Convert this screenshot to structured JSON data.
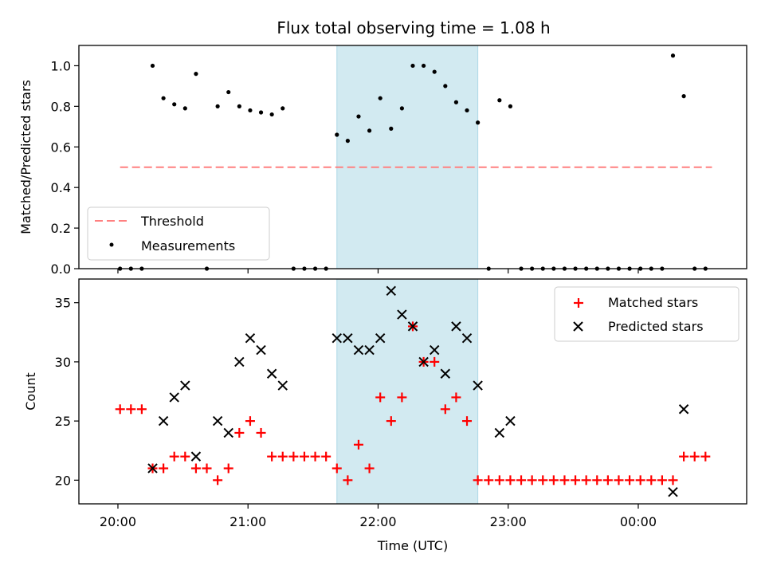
{
  "figure": {
    "title": "Flux total observing time = 1.08 h",
    "xlabel": "Time (UTC)",
    "x_ticks": [
      "20:00",
      "21:00",
      "22:00",
      "23:00",
      "00:00"
    ]
  },
  "chart_data": [
    {
      "type": "scatter",
      "ylabel": "Matched/Predicted stars",
      "ylim": [
        0,
        1.1
      ],
      "yticks": [
        "0.0",
        "0.2",
        "0.4",
        "0.6",
        "0.8",
        "1.0"
      ],
      "xlim": [
        "19:42",
        "00:50"
      ],
      "shaded_span": [
        "21:41",
        "22:46"
      ],
      "shaded_color": "#add8e6",
      "legend": {
        "position": "lower left",
        "threshold": "Threshold",
        "measurements": "Measurements"
      },
      "threshold": {
        "value": 0.5,
        "x": [
          "20:01",
          "00:34"
        ],
        "color": "#ff8080"
      },
      "series": [
        {
          "name": "Measurements",
          "color": "#000000",
          "x": [
            "20:01",
            "20:06",
            "20:11",
            "20:16",
            "20:21",
            "20:26",
            "20:31",
            "20:36",
            "20:41",
            "20:46",
            "20:51",
            "20:56",
            "21:01",
            "21:06",
            "21:11",
            "21:16",
            "21:21",
            "21:26",
            "21:31",
            "21:36",
            "21:41",
            "21:46",
            "21:51",
            "21:56",
            "22:01",
            "22:06",
            "22:11",
            "22:16",
            "22:21",
            "22:26",
            "22:31",
            "22:36",
            "22:41",
            "22:46",
            "22:51",
            "22:56",
            "23:01",
            "23:06",
            "23:11",
            "23:16",
            "23:21",
            "23:26",
            "23:31",
            "23:36",
            "23:41",
            "23:46",
            "23:51",
            "23:56",
            "00:01",
            "00:06",
            "00:11",
            "00:16",
            "00:21",
            "00:26",
            "00:31"
          ],
          "y": [
            0,
            0,
            0,
            1.0,
            0.84,
            0.81,
            0.79,
            0.96,
            0,
            0.8,
            0.87,
            0.8,
            0.78,
            0.77,
            0.76,
            0.79,
            0,
            0,
            0,
            0,
            0.66,
            0.63,
            0.75,
            0.68,
            0.84,
            0.69,
            0.79,
            1.0,
            1.0,
            0.97,
            0.9,
            0.82,
            0.78,
            0.72,
            0,
            0.83,
            0.8,
            0,
            0,
            0,
            0,
            0,
            0,
            0,
            0,
            0,
            0,
            0,
            0,
            0,
            0,
            1.05,
            0.85,
            0,
            0
          ]
        }
      ]
    },
    {
      "type": "scatter",
      "ylabel": "Count",
      "ylim": [
        18,
        37
      ],
      "yticks": [
        "20",
        "25",
        "30",
        "35"
      ],
      "xlim": [
        "19:42",
        "00:50"
      ],
      "shaded_span": [
        "21:41",
        "22:46"
      ],
      "shaded_color": "#add8e6",
      "legend": {
        "position": "upper right"
      },
      "series": [
        {
          "name": "Matched stars",
          "color": "#ff0000",
          "marker": "plus",
          "x": [
            "20:01",
            "20:06",
            "20:11",
            "20:16",
            "20:21",
            "20:26",
            "20:31",
            "20:36",
            "20:41",
            "20:46",
            "20:51",
            "20:56",
            "21:01",
            "21:06",
            "21:11",
            "21:16",
            "21:21",
            "21:26",
            "21:31",
            "21:36",
            "21:41",
            "21:46",
            "21:51",
            "21:56",
            "22:01",
            "22:06",
            "22:11",
            "22:16",
            "22:21",
            "22:26",
            "22:31",
            "22:36",
            "22:41",
            "22:46",
            "22:51",
            "22:56",
            "23:01",
            "23:06",
            "23:11",
            "23:16",
            "23:21",
            "23:26",
            "23:31",
            "23:36",
            "23:41",
            "23:46",
            "23:51",
            "23:56",
            "00:01",
            "00:06",
            "00:11",
            "00:16",
            "00:21",
            "00:26",
            "00:31"
          ],
          "y": [
            26,
            26,
            26,
            21,
            21,
            22,
            22,
            21,
            21,
            20,
            21,
            24,
            25,
            24,
            22,
            22,
            22,
            22,
            22,
            22,
            21,
            20,
            23,
            21,
            27,
            25,
            27,
            33,
            30,
            30,
            26,
            27,
            25,
            20,
            20,
            20,
            20,
            20,
            20,
            20,
            20,
            20,
            20,
            20,
            20,
            20,
            20,
            20,
            20,
            20,
            20,
            20,
            22,
            22,
            22
          ]
        },
        {
          "name": "Predicted stars",
          "color": "#000000",
          "marker": "x",
          "x": [
            "20:16",
            "20:21",
            "20:26",
            "20:31",
            "20:36",
            "20:46",
            "20:51",
            "20:56",
            "21:01",
            "21:06",
            "21:11",
            "21:16",
            "21:41",
            "21:46",
            "21:51",
            "21:56",
            "22:01",
            "22:06",
            "22:11",
            "22:16",
            "22:21",
            "22:26",
            "22:31",
            "22:36",
            "22:41",
            "22:46",
            "22:56",
            "23:01",
            "00:16",
            "00:21"
          ],
          "y": [
            21,
            25,
            27,
            28,
            22,
            25,
            24,
            30,
            32,
            31,
            29,
            28,
            32,
            32,
            31,
            31,
            32,
            36,
            34,
            33,
            30,
            31,
            29,
            33,
            32,
            28,
            24,
            25,
            19,
            26
          ]
        }
      ]
    }
  ]
}
